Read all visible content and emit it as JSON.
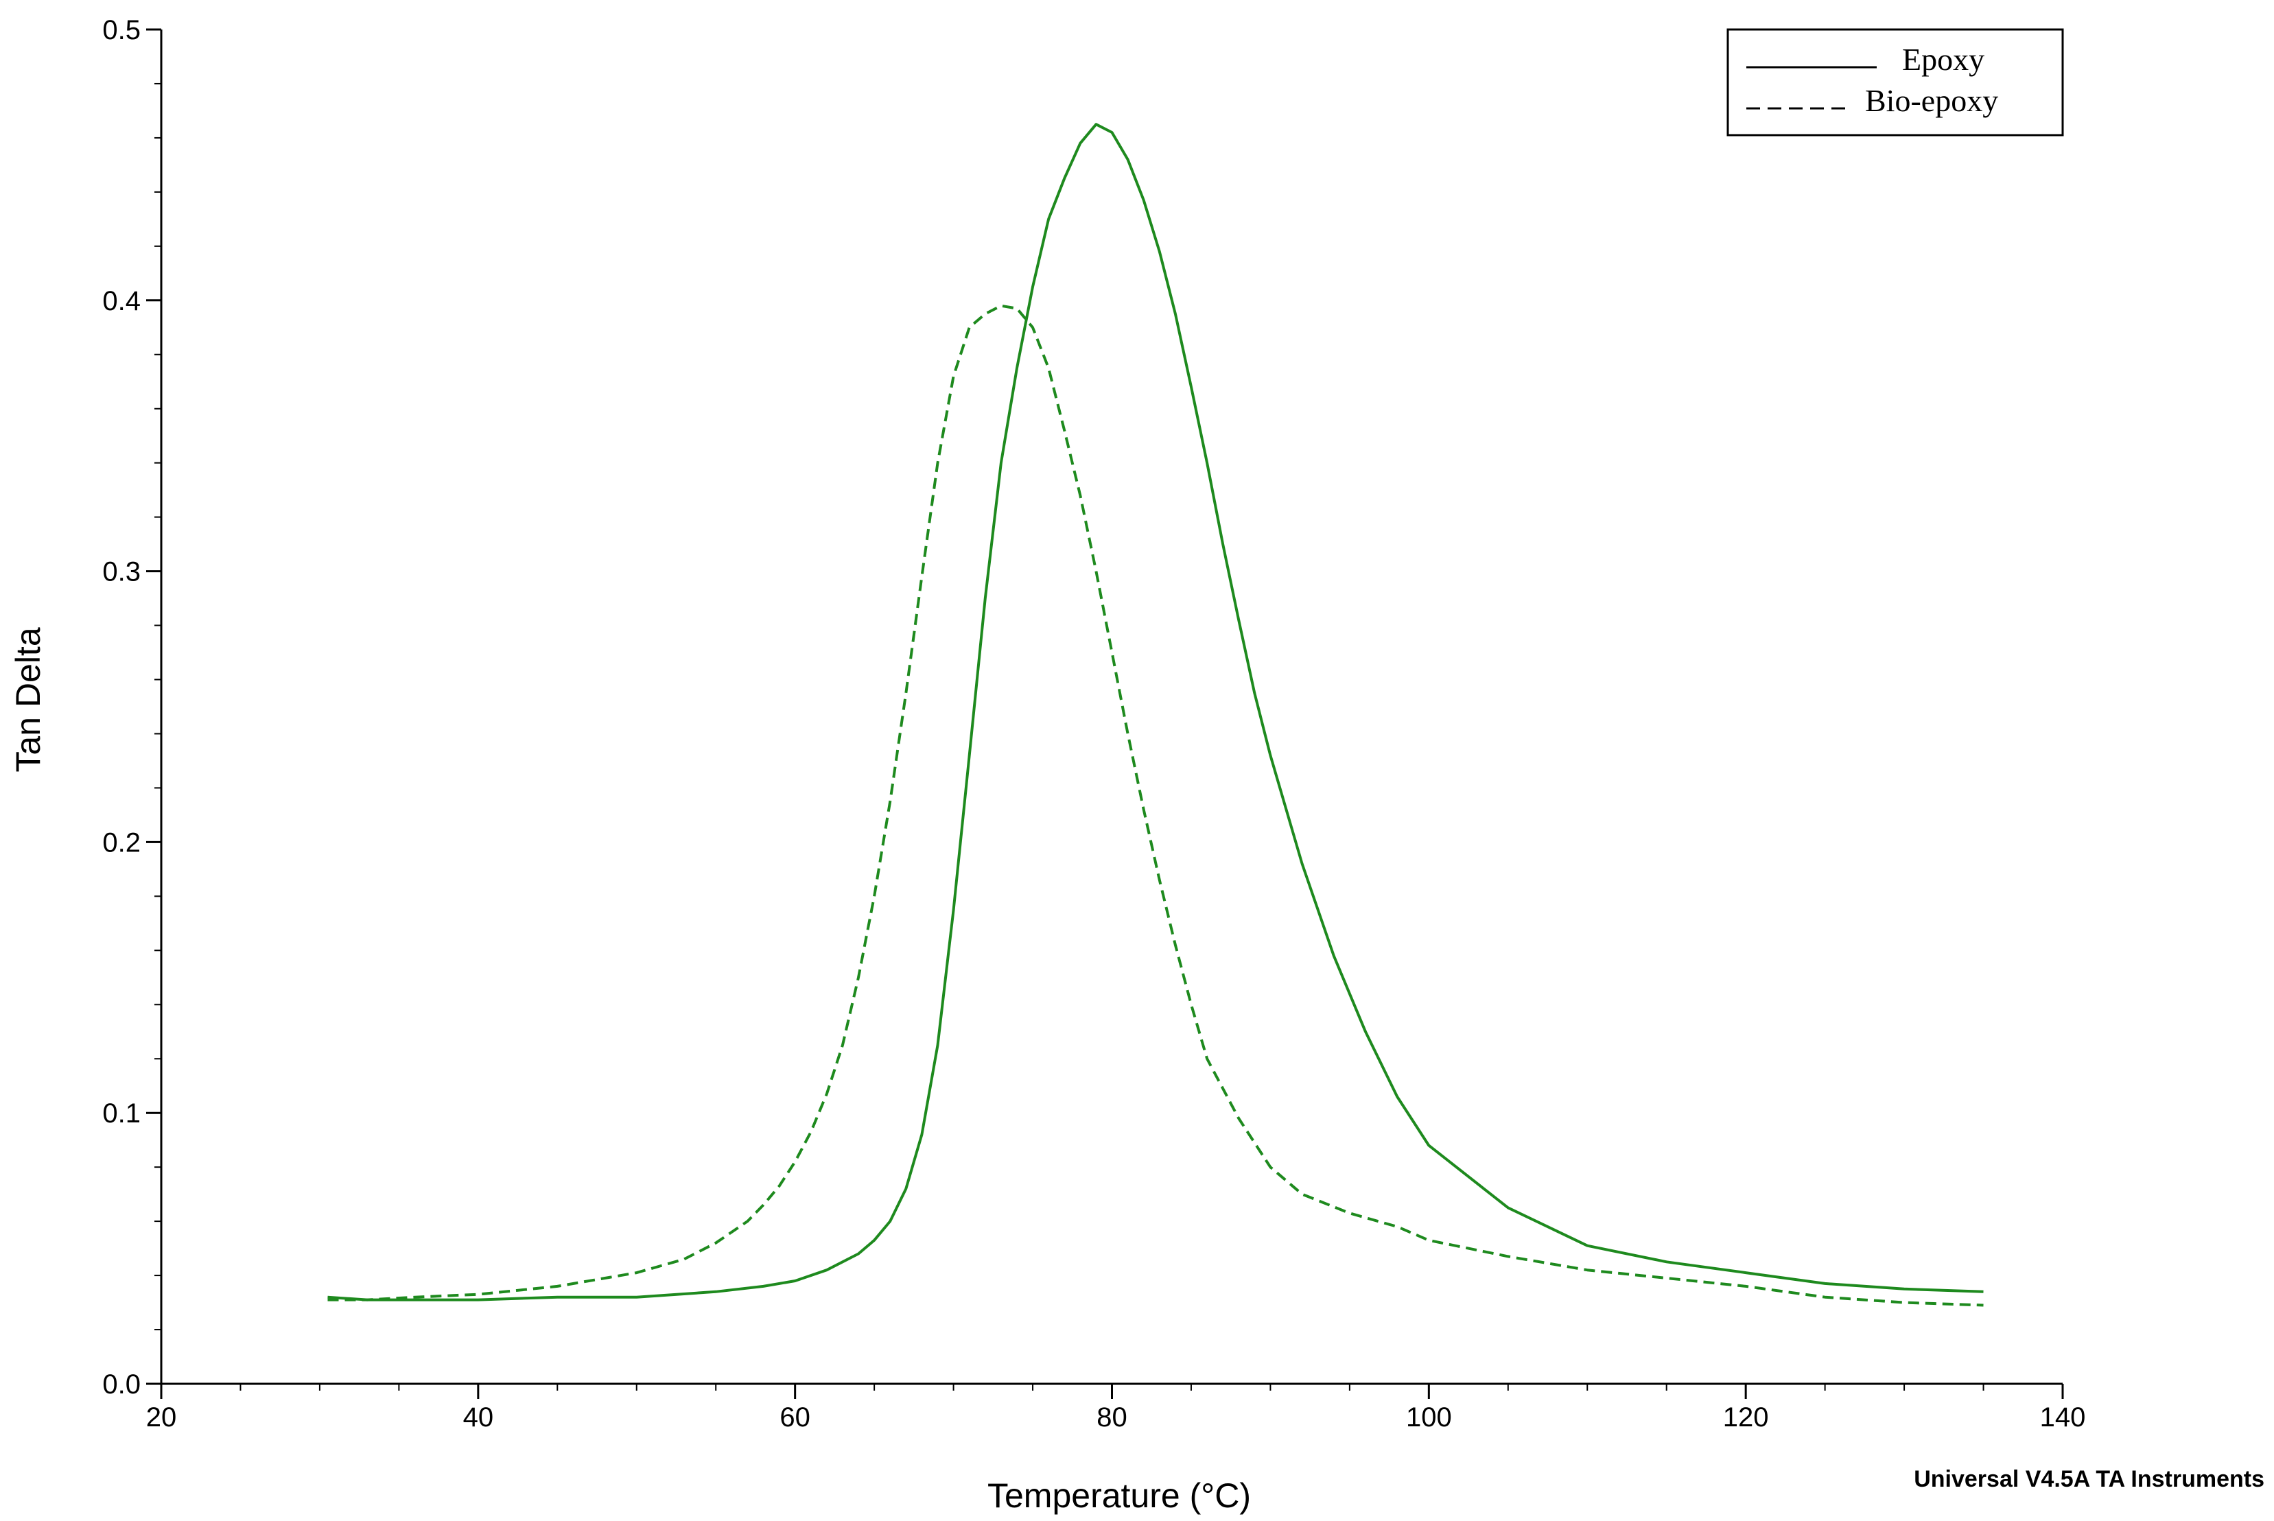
{
  "chart_data": {
    "type": "line",
    "xlabel": "Temperature (°C)",
    "ylabel": "Tan Delta",
    "xlim": [
      20,
      140
    ],
    "ylim": [
      0.0,
      0.5
    ],
    "x_ticks": [
      20,
      40,
      60,
      80,
      100,
      120,
      140
    ],
    "x_tick_labels": [
      "20",
      "40",
      "60",
      "80",
      "100",
      "120",
      "140"
    ],
    "y_ticks": [
      0.0,
      0.1,
      0.2,
      0.3,
      0.4,
      0.5
    ],
    "y_tick_labels": [
      "0.0",
      "0.1",
      "0.2",
      "0.3",
      "0.4",
      "0.5"
    ],
    "x_minor_step": 5,
    "y_minor_step": 0.02,
    "grid": false,
    "legend_position": "top-right",
    "line_color": "#1e8a1e",
    "series": [
      {
        "name": "Epoxy",
        "style": "solid",
        "x": [
          30.5,
          33,
          36,
          40,
          45,
          50,
          55,
          58,
          60,
          62,
          64,
          65,
          66,
          67,
          68,
          69,
          70,
          71,
          72,
          73,
          74,
          75,
          76,
          77,
          78,
          79,
          80,
          81,
          82,
          83,
          84,
          85,
          86,
          87,
          88,
          89,
          90,
          92,
          94,
          96,
          98,
          100,
          105,
          110,
          115,
          120,
          125,
          130,
          135
        ],
        "y": [
          0.032,
          0.031,
          0.031,
          0.031,
          0.032,
          0.032,
          0.034,
          0.036,
          0.038,
          0.042,
          0.048,
          0.053,
          0.06,
          0.072,
          0.092,
          0.125,
          0.175,
          0.232,
          0.29,
          0.34,
          0.375,
          0.405,
          0.43,
          0.445,
          0.458,
          0.465,
          0.462,
          0.452,
          0.437,
          0.418,
          0.395,
          0.368,
          0.34,
          0.31,
          0.282,
          0.255,
          0.232,
          0.192,
          0.158,
          0.13,
          0.106,
          0.088,
          0.065,
          0.051,
          0.045,
          0.041,
          0.037,
          0.035,
          0.034
        ]
      },
      {
        "name": "Bio-epoxy",
        "style": "dashed",
        "x": [
          30.5,
          33,
          36,
          40,
          45,
          50,
          53,
          55,
          57,
          58,
          59,
          60,
          61,
          62,
          63,
          64,
          65,
          66,
          67,
          68,
          69,
          70,
          71,
          72,
          73,
          74,
          75,
          76,
          77,
          78,
          79,
          80,
          81,
          82,
          83,
          84,
          85,
          86,
          88,
          90,
          92,
          95,
          98,
          100,
          105,
          110,
          115,
          120,
          125,
          130,
          135
        ],
        "y": [
          0.031,
          0.031,
          0.032,
          0.033,
          0.036,
          0.041,
          0.046,
          0.052,
          0.06,
          0.066,
          0.073,
          0.082,
          0.093,
          0.107,
          0.125,
          0.15,
          0.18,
          0.215,
          0.255,
          0.298,
          0.34,
          0.372,
          0.39,
          0.395,
          0.398,
          0.397,
          0.39,
          0.375,
          0.352,
          0.328,
          0.3,
          0.27,
          0.24,
          0.212,
          0.186,
          0.162,
          0.14,
          0.12,
          0.098,
          0.08,
          0.07,
          0.063,
          0.058,
          0.053,
          0.047,
          0.042,
          0.039,
          0.036,
          0.032,
          0.03,
          0.029
        ]
      }
    ]
  },
  "footer": {
    "instrument_label": "Universal V4.5A TA Instruments"
  }
}
